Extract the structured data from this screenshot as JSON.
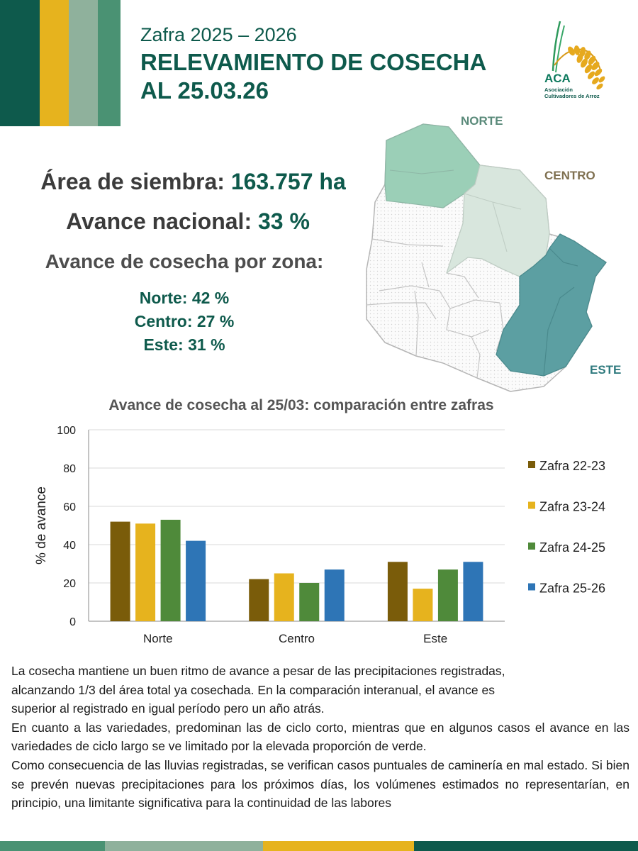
{
  "colors": {
    "dark_green": "#0e5a4c",
    "gold": "#e6b31e",
    "sage": "#8fb19c",
    "mid_green": "#4a9273",
    "zona_norte": "#9bcfb7",
    "zona_centro": "#d8e6dd",
    "zona_este": "#5c9fa2"
  },
  "header": {
    "subtitle": "Zafra 2025 – 2026",
    "title_line1": "RELEVAMIENTO DE COSECHA",
    "title_line2": "AL 25.03.26"
  },
  "logo": {
    "name": "ACA",
    "line1": "Asociación",
    "line2": "Cultivadores de Arroz",
    "icon": "rice-stalk-icon"
  },
  "stats": {
    "area_label": "Área de siembra:",
    "area_value": "163.757 ha",
    "avance_label": "Avance nacional:",
    "avance_value": "33 %"
  },
  "zones": {
    "heading": "Avance de cosecha por zona:",
    "norte": "Norte: 42 %",
    "centro": "Centro: 27 %",
    "este": "Este: 31 %"
  },
  "map": {
    "norte_label": "NORTE",
    "centro_label": "CENTRO",
    "este_label": "ESTE"
  },
  "chart_data": {
    "type": "bar",
    "title": "Avance de cosecha al 25/03: comparación entre zafras",
    "xlabel": "",
    "ylabel": "%  de avance",
    "ylim": [
      0,
      100
    ],
    "yticks": [
      0,
      20,
      40,
      60,
      80,
      100
    ],
    "grid": true,
    "legend_position": "right",
    "categories": [
      "Norte",
      "Centro",
      "Este"
    ],
    "series": [
      {
        "name": "Zafra 22-23",
        "color": "#7a5c0a",
        "values": [
          52,
          22,
          31
        ]
      },
      {
        "name": "Zafra 23-24",
        "color": "#e6b31e",
        "values": [
          51,
          25,
          17
        ]
      },
      {
        "name": "Zafra 24-25",
        "color": "#4f8a3a",
        "values": [
          53,
          20,
          27
        ]
      },
      {
        "name": "Zafra 25-26",
        "color": "#2e75b6",
        "values": [
          42,
          27,
          31
        ]
      }
    ]
  },
  "body": {
    "paragraph1_lines": [
      "La cosecha mantiene un buen ritmo de avance a pesar de las precipitaciones registradas,",
      "alcanzando 1/3 del área total ya cosechada. En la comparación interanual, el avance es",
      "superior al registrado en igual período pero un año atrás."
    ],
    "paragraph2": "En cuanto a las variedades, predominan las de ciclo corto, mientras que en algunos casos el avance en las  variedades de ciclo largo se ve limitado por la elevada proporción de verde.",
    "paragraph3": "Como consecuencia de las lluvias registradas, se verifican casos puntuales de caminería en mal estado. Si bien se prevén nuevas precipitaciones para los próximos días, los volúmenes estimados no representarían, en principio, una limitante significativa para la continuidad de las labores"
  }
}
